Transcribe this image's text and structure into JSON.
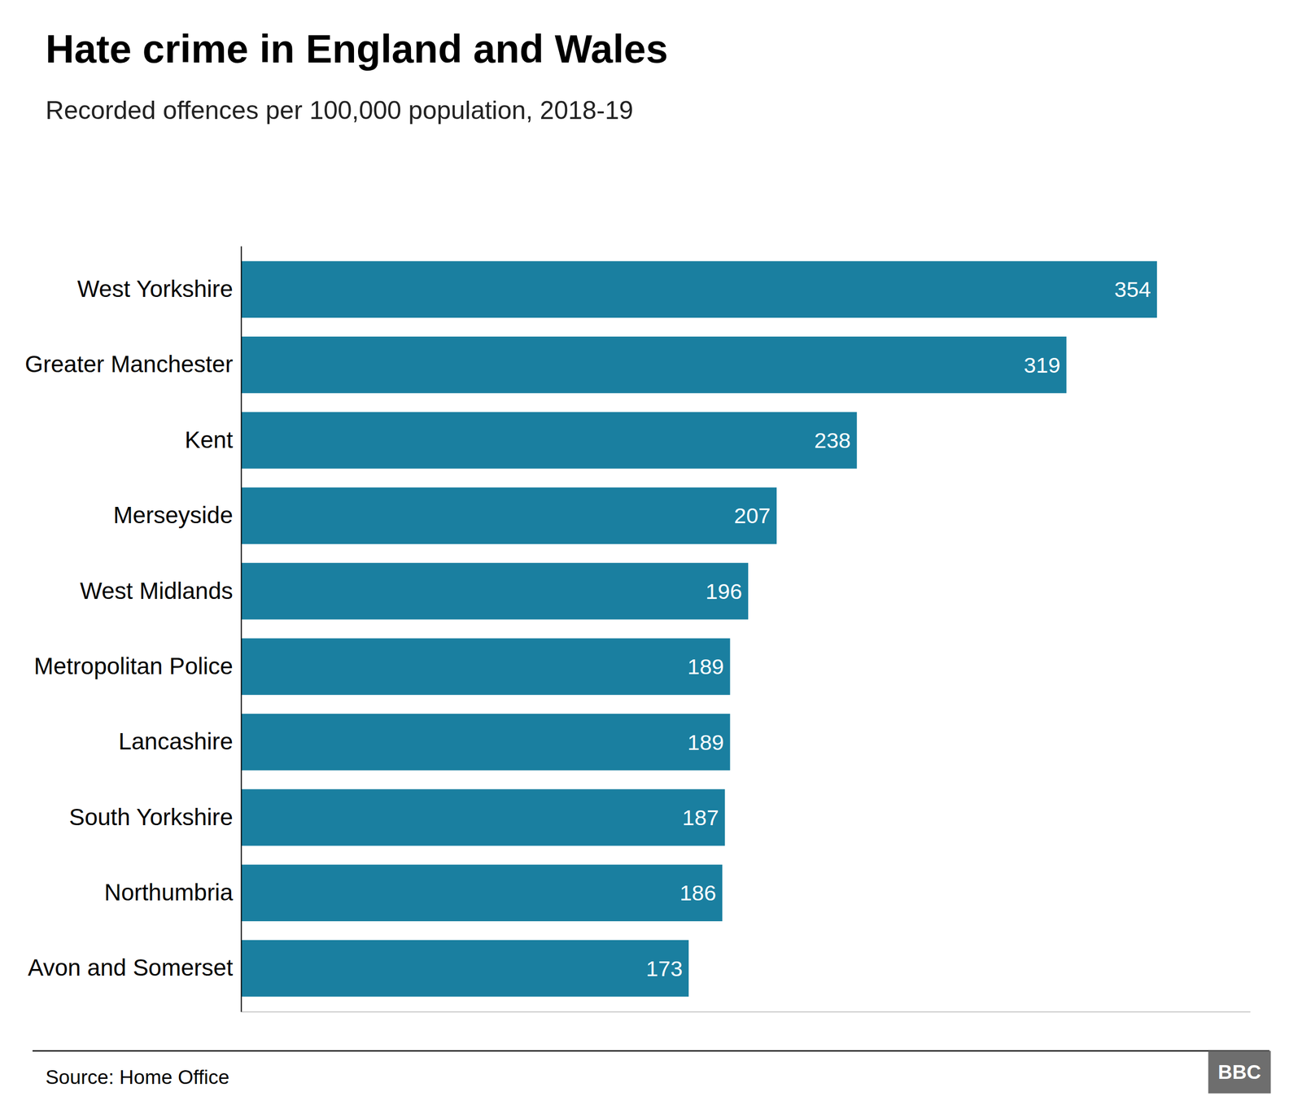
{
  "chart_data": {
    "type": "bar",
    "orientation": "horizontal",
    "title": "Hate crime in England and Wales",
    "subtitle": "Recorded offences per 100,000 population, 2018-19",
    "source": "Source: Home Office",
    "annotations": [
      "BBC"
    ],
    "categories": [
      "West Yorkshire",
      "Greater Manchester",
      "Kent",
      "Merseyside",
      "West Midlands",
      "Metropolitan Police",
      "Lancashire",
      "South Yorkshire",
      "Northumbria",
      "Avon and Somerset"
    ],
    "values": [
      354,
      319,
      238,
      207,
      196,
      189,
      189,
      187,
      186,
      173
    ],
    "color": "#1a7fa0",
    "xlim": [
      0,
      390
    ],
    "data_labels": true,
    "tick_labels": "y",
    "grid": false
  }
}
